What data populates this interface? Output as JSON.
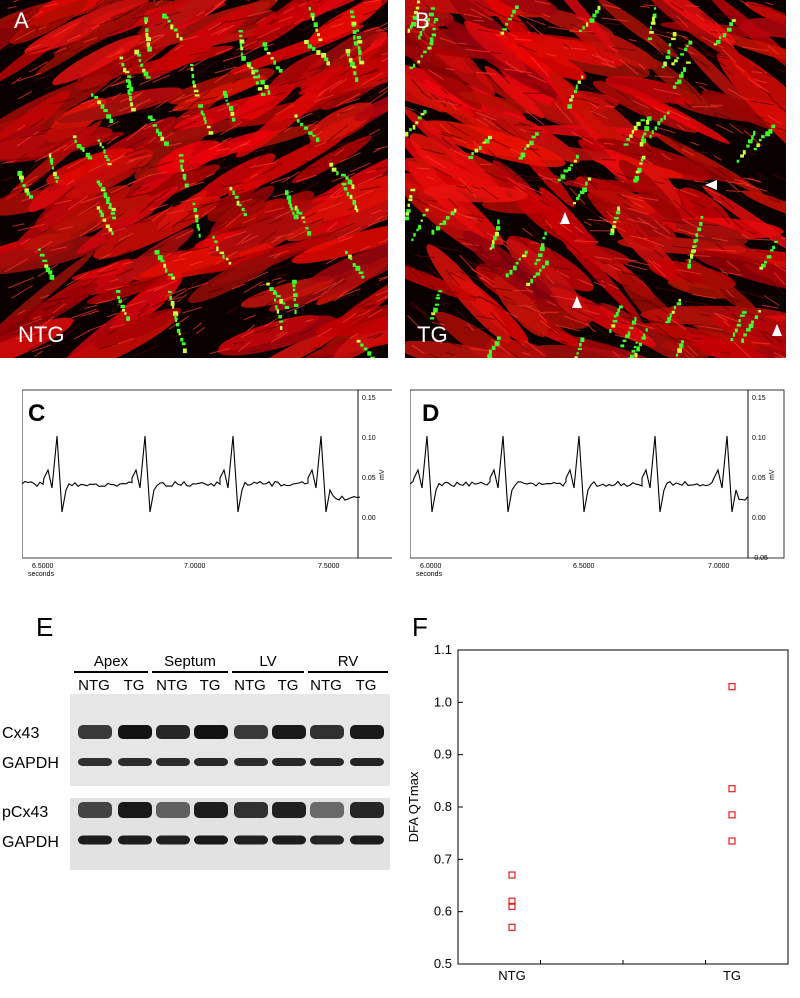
{
  "panels": {
    "a": {
      "letter": "A",
      "label": "NTG"
    },
    "b": {
      "letter": "B",
      "label": "TG"
    },
    "c": {
      "letter": "C",
      "x_ticks": [
        "6.5000",
        "7.0000",
        "7.5000"
      ],
      "x_unit": "seconds",
      "y_ticks": [
        "0.15",
        "0.10",
        "0.05",
        "0.00"
      ],
      "y_unit": "mV"
    },
    "d": {
      "letter": "D",
      "x_ticks": [
        "6.0000",
        "6.5000",
        "7.0000"
      ],
      "x_unit": "seconds",
      "y_ticks": [
        "0.15",
        "0.10",
        "0.05",
        "0.00",
        "-0.05"
      ],
      "y_unit": "mV"
    },
    "e": {
      "letter": "E",
      "regions": [
        "Apex",
        "Septum",
        "LV",
        "RV"
      ],
      "lane_labels": [
        "NTG",
        "TG",
        "NTG",
        "TG",
        "NTG",
        "TG",
        "NTG",
        "TG"
      ],
      "row_labels": [
        "Cx43",
        "GAPDH",
        "pCx43",
        "GAPDH"
      ],
      "band_intensity": {
        "Cx43": [
          0.75,
          0.95,
          0.85,
          0.95,
          0.75,
          0.92,
          0.8,
          0.92
        ],
        "GAPDH1": [
          0.8,
          0.82,
          0.82,
          0.84,
          0.82,
          0.84,
          0.84,
          0.86
        ],
        "pCx43": [
          0.7,
          0.92,
          0.55,
          0.9,
          0.8,
          0.88,
          0.5,
          0.85
        ],
        "GAPDH2": [
          0.9,
          0.9,
          0.88,
          0.92,
          0.88,
          0.9,
          0.86,
          0.9
        ]
      }
    },
    "f": {
      "letter": "F"
    }
  },
  "chart_data": {
    "type": "scatter",
    "ylabel": "DFA QTmax",
    "xlabel": "",
    "categories": [
      "NTG",
      "TG"
    ],
    "ylim": [
      0.5,
      1.1
    ],
    "y_ticks": [
      "0.5",
      "0.6",
      "0.7",
      "0.8",
      "0.9",
      "1.0",
      "1.1"
    ],
    "series": [
      {
        "category": "NTG",
        "values": [
          0.67,
          0.62,
          0.61,
          0.57
        ]
      },
      {
        "category": "TG",
        "values": [
          1.03,
          0.835,
          0.785,
          0.735
        ]
      }
    ],
    "marker_color": "#e02020"
  },
  "colors": {
    "muscle": "#d01010",
    "gap_junction": "#3cff2a",
    "background_micro": "#0b0000"
  }
}
